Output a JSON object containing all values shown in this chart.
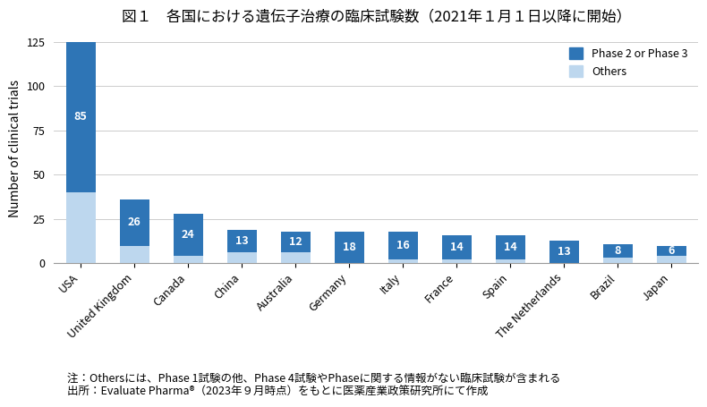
{
  "title": "図１　各国における遺伝子治療の臨床試験数（2021年１月１日以降に開始）",
  "ylabel": "Number of clinical trials",
  "categories": [
    "USA",
    "United Kingdom",
    "Canada",
    "China",
    "Australia",
    "Germany",
    "Italy",
    "France",
    "Spain",
    "The Netherlands",
    "Brazil",
    "Japan"
  ],
  "phase23": [
    85,
    26,
    24,
    13,
    12,
    18,
    16,
    14,
    14,
    13,
    8,
    6
  ],
  "others": [
    40,
    10,
    4,
    6,
    6,
    0,
    2,
    2,
    2,
    0,
    3,
    4
  ],
  "phase23_color": "#2E75B6",
  "others_color": "#BDD7EE",
  "ylim": [
    0,
    130
  ],
  "yticks": [
    0,
    25,
    50,
    75,
    100,
    125
  ],
  "legend_phase23": "Phase 2 or Phase 3",
  "legend_others": "Others",
  "note_line1": "注：Othersには、Phase 1試験の他、Phase 4試験やPhaseに関する情報がない臨床試験が含まれる",
  "note_line2": "出所：Evaluate Pharma®（2023年９月時点）をもとに医薬産業政策研究所にて作成",
  "background_color": "#FFFFFF",
  "grid_color": "#CCCCCC",
  "title_fontsize": 12,
  "axis_fontsize": 10,
  "tick_fontsize": 9,
  "note_fontsize": 9
}
